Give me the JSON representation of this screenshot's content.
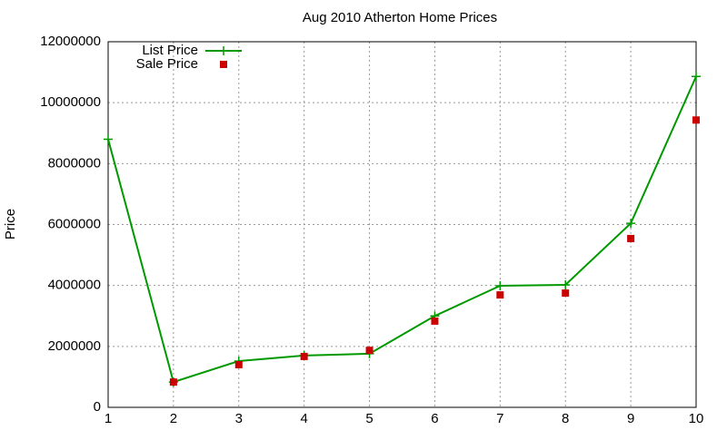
{
  "chart_data": {
    "type": "line",
    "title": "Aug 2010 Atherton Home Prices",
    "y_label": "Price",
    "x": [
      1,
      2,
      3,
      4,
      5,
      6,
      7,
      8,
      9,
      10
    ],
    "xlim": [
      1,
      10
    ],
    "xticks": [
      1,
      2,
      3,
      4,
      5,
      6,
      7,
      8,
      9,
      10
    ],
    "ylim": [
      0,
      12000000
    ],
    "yticks": [
      0,
      2000000,
      4000000,
      6000000,
      8000000,
      10000000,
      12000000
    ],
    "grid": true,
    "legend": "top-left",
    "series": [
      {
        "name": "List Price",
        "color": "#009900",
        "style": "linespoints",
        "values": [
          8800000,
          830000,
          1520000,
          1700000,
          1760000,
          3000000,
          3990000,
          4020000,
          6040000,
          10860000
        ]
      },
      {
        "name": "Sale Price",
        "color": "#cc0000",
        "style": "points",
        "values": [
          null,
          830000,
          1400000,
          1670000,
          1870000,
          2830000,
          3690000,
          3750000,
          5540000,
          9430000
        ]
      }
    ]
  }
}
